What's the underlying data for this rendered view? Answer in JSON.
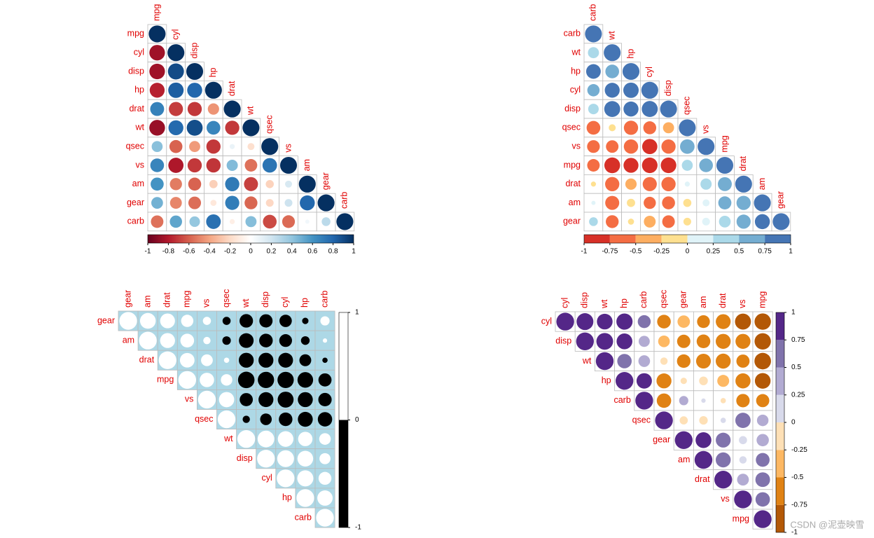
{
  "chart_data": [
    {
      "type": "corrplot",
      "triangle": "lower",
      "colormap": "continuous",
      "variables": [
        "mpg",
        "cyl",
        "disp",
        "hp",
        "drat",
        "wt",
        "qsec",
        "vs",
        "am",
        "gear",
        "carb"
      ],
      "colors": [
        "#67001f",
        "#b2182b",
        "#d6604d",
        "#f4a582",
        "#fddbc7",
        "#ffffff",
        "#d1e5f0",
        "#92c5de",
        "#4393c3",
        "#2166ac",
        "#053061"
      ],
      "colorbar_ticks": [
        -1,
        -0.8,
        -0.6,
        -0.4,
        -0.2,
        0,
        0.2,
        0.4,
        0.6,
        0.8,
        1
      ],
      "values": {
        "mpg": {
          "mpg": 1,
          "cyl": -0.85,
          "disp": -0.85,
          "hp": -0.78,
          "drat": 0.68,
          "wt": -0.87,
          "qsec": 0.42,
          "vs": 0.66,
          "am": 0.6,
          "gear": 0.48,
          "carb": -0.55
        },
        "cyl": {
          "cyl": 1,
          "disp": 0.9,
          "hp": 0.83,
          "drat": -0.7,
          "wt": 0.78,
          "qsec": -0.59,
          "vs": -0.81,
          "am": -0.52,
          "gear": -0.49,
          "carb": 0.53
        },
        "disp": {
          "disp": 1,
          "hp": 0.79,
          "drat": -0.71,
          "wt": 0.89,
          "qsec": -0.43,
          "vs": -0.71,
          "am": -0.59,
          "gear": -0.56,
          "carb": 0.39
        },
        "hp": {
          "hp": 1,
          "drat": -0.45,
          "wt": 0.66,
          "qsec": -0.71,
          "vs": -0.72,
          "am": -0.24,
          "gear": -0.13,
          "carb": 0.75
        },
        "drat": {
          "drat": 1,
          "wt": -0.71,
          "qsec": 0.09,
          "vs": 0.44,
          "am": 0.71,
          "gear": 0.7,
          "carb": -0.09
        },
        "wt": {
          "wt": 1,
          "qsec": -0.17,
          "vs": -0.55,
          "am": -0.69,
          "gear": -0.58,
          "carb": 0.43
        },
        "qsec": {
          "qsec": 1,
          "vs": 0.74,
          "am": -0.23,
          "gear": -0.21,
          "carb": -0.66
        },
        "vs": {
          "vs": 1,
          "am": 0.17,
          "gear": 0.21,
          "carb": -0.57
        },
        "am": {
          "am": 1,
          "gear": 0.79,
          "carb": 0.06
        },
        "gear": {
          "gear": 1,
          "carb": 0.27
        },
        "carb": {
          "carb": 1
        }
      }
    },
    {
      "type": "corrplot",
      "triangle": "lower",
      "colormap": "discrete",
      "variables": [
        "carb",
        "wt",
        "hp",
        "cyl",
        "disp",
        "qsec",
        "vs",
        "mpg",
        "drat",
        "am",
        "gear"
      ],
      "colors": [
        "#d73027",
        "#f46d43",
        "#fdae61",
        "#fee090",
        "#e0f3f8",
        "#abd9e9",
        "#74add1",
        "#4575b4"
      ],
      "colorbar_ticks": [
        -1,
        -0.75,
        -0.5,
        -0.25,
        0,
        0.25,
        0.5,
        0.75,
        1
      ],
      "values": {
        "mpg": {
          "mpg": 1,
          "cyl": -0.85,
          "disp": -0.85,
          "hp": -0.78,
          "drat": 0.68,
          "wt": -0.87,
          "qsec": 0.42,
          "vs": 0.66,
          "am": 0.6,
          "gear": 0.48,
          "carb": -0.55
        },
        "cyl": {
          "cyl": 1,
          "disp": 0.9,
          "hp": 0.83,
          "drat": -0.7,
          "wt": 0.78,
          "qsec": -0.59,
          "vs": -0.81,
          "am": -0.52,
          "gear": -0.49,
          "carb": 0.53
        },
        "disp": {
          "disp": 1,
          "hp": 0.79,
          "drat": -0.71,
          "wt": 0.89,
          "qsec": -0.43,
          "vs": -0.71,
          "am": -0.59,
          "gear": -0.56,
          "carb": 0.39
        },
        "hp": {
          "hp": 1,
          "drat": -0.45,
          "wt": 0.66,
          "qsec": -0.71,
          "vs": -0.72,
          "am": -0.24,
          "gear": -0.13,
          "carb": 0.75
        },
        "drat": {
          "drat": 1,
          "wt": -0.71,
          "qsec": 0.09,
          "vs": 0.44,
          "am": 0.71,
          "gear": 0.7,
          "carb": -0.09
        },
        "wt": {
          "wt": 1,
          "qsec": -0.17,
          "vs": -0.55,
          "am": -0.69,
          "gear": -0.58,
          "carb": 0.43
        },
        "qsec": {
          "qsec": 1,
          "vs": 0.74,
          "am": -0.23,
          "gear": -0.21,
          "carb": -0.66
        },
        "vs": {
          "vs": 1,
          "am": 0.17,
          "gear": 0.21,
          "carb": -0.57
        },
        "am": {
          "am": 1,
          "gear": 0.79,
          "carb": 0.06
        },
        "gear": {
          "gear": 1,
          "carb": 0.27
        },
        "carb": {
          "carb": 1
        }
      }
    },
    {
      "type": "corrplot",
      "triangle": "upper",
      "colormap": "discrete",
      "background": "#add8e6",
      "variables": [
        "gear",
        "am",
        "drat",
        "mpg",
        "vs",
        "qsec",
        "wt",
        "disp",
        "cyl",
        "hp",
        "carb"
      ],
      "colors": [
        "#000000",
        "#ffffff"
      ],
      "colorbar_ticks": [
        -1,
        0,
        1
      ],
      "values": {
        "mpg": {
          "mpg": 1,
          "cyl": -0.85,
          "disp": -0.85,
          "hp": -0.78,
          "drat": 0.68,
          "wt": -0.87,
          "qsec": 0.42,
          "vs": 0.66,
          "am": 0.6,
          "gear": 0.48,
          "carb": -0.55
        },
        "cyl": {
          "cyl": 1,
          "disp": 0.9,
          "hp": 0.83,
          "drat": -0.7,
          "wt": 0.78,
          "qsec": -0.59,
          "vs": -0.81,
          "am": -0.52,
          "gear": -0.49,
          "carb": 0.53
        },
        "disp": {
          "disp": 1,
          "hp": 0.79,
          "drat": -0.71,
          "wt": 0.89,
          "qsec": -0.43,
          "vs": -0.71,
          "am": -0.59,
          "gear": -0.56,
          "carb": 0.39
        },
        "hp": {
          "hp": 1,
          "drat": -0.45,
          "wt": 0.66,
          "qsec": -0.71,
          "vs": -0.72,
          "am": -0.24,
          "gear": -0.13,
          "carb": 0.75
        },
        "drat": {
          "drat": 1,
          "wt": -0.71,
          "qsec": 0.09,
          "vs": 0.44,
          "am": 0.71,
          "gear": 0.7,
          "carb": -0.09
        },
        "wt": {
          "wt": 1,
          "qsec": -0.17,
          "vs": -0.55,
          "am": -0.69,
          "gear": -0.58,
          "carb": 0.43
        },
        "qsec": {
          "qsec": 1,
          "vs": 0.74,
          "am": -0.23,
          "gear": -0.21,
          "carb": -0.66
        },
        "vs": {
          "vs": 1,
          "am": 0.17,
          "gear": 0.21,
          "carb": -0.57
        },
        "am": {
          "am": 1,
          "gear": 0.79,
          "carb": 0.06
        },
        "gear": {
          "gear": 1,
          "carb": 0.27
        },
        "carb": {
          "carb": 1
        }
      }
    },
    {
      "type": "corrplot",
      "triangle": "upper",
      "colormap": "discrete",
      "variables": [
        "cyl",
        "disp",
        "wt",
        "hp",
        "carb",
        "qsec",
        "gear",
        "am",
        "drat",
        "vs",
        "mpg"
      ],
      "colors": [
        "#b35806",
        "#e08214",
        "#fdb863",
        "#fee0b6",
        "#d8daeb",
        "#b2abd2",
        "#8073ac",
        "#542788"
      ],
      "colorbar_ticks": [
        -1,
        -0.75,
        -0.5,
        -0.25,
        0,
        0.25,
        0.5,
        0.75,
        1
      ],
      "values": {
        "mpg": {
          "mpg": 1,
          "cyl": -0.85,
          "disp": -0.85,
          "hp": -0.78,
          "drat": 0.68,
          "wt": -0.87,
          "qsec": 0.42,
          "vs": 0.66,
          "am": 0.6,
          "gear": 0.48,
          "carb": -0.55
        },
        "cyl": {
          "cyl": 1,
          "disp": 0.9,
          "hp": 0.83,
          "drat": -0.7,
          "wt": 0.78,
          "qsec": -0.59,
          "vs": -0.81,
          "am": -0.52,
          "gear": -0.49,
          "carb": 0.53
        },
        "disp": {
          "disp": 1,
          "hp": 0.79,
          "drat": -0.71,
          "wt": 0.89,
          "qsec": -0.43,
          "vs": -0.71,
          "am": -0.59,
          "gear": -0.56,
          "carb": 0.39
        },
        "hp": {
          "hp": 1,
          "drat": -0.45,
          "wt": 0.66,
          "qsec": -0.71,
          "vs": -0.72,
          "am": -0.24,
          "gear": -0.13,
          "carb": 0.75
        },
        "drat": {
          "drat": 1,
          "wt": -0.71,
          "qsec": 0.09,
          "vs": 0.44,
          "am": 0.71,
          "gear": 0.7,
          "carb": -0.09
        },
        "wt": {
          "wt": 1,
          "qsec": -0.17,
          "vs": -0.55,
          "am": -0.69,
          "gear": -0.58,
          "carb": 0.43
        },
        "qsec": {
          "qsec": 1,
          "vs": 0.74,
          "am": -0.23,
          "gear": -0.21,
          "carb": -0.66
        },
        "vs": {
          "vs": 1,
          "am": 0.17,
          "gear": 0.21,
          "carb": -0.57
        },
        "am": {
          "am": 1,
          "gear": 0.79,
          "carb": 0.06
        },
        "gear": {
          "gear": 1,
          "carb": 0.27
        },
        "carb": {
          "carb": 1
        }
      }
    }
  ],
  "watermark": "CSDN @泥壶映雪"
}
